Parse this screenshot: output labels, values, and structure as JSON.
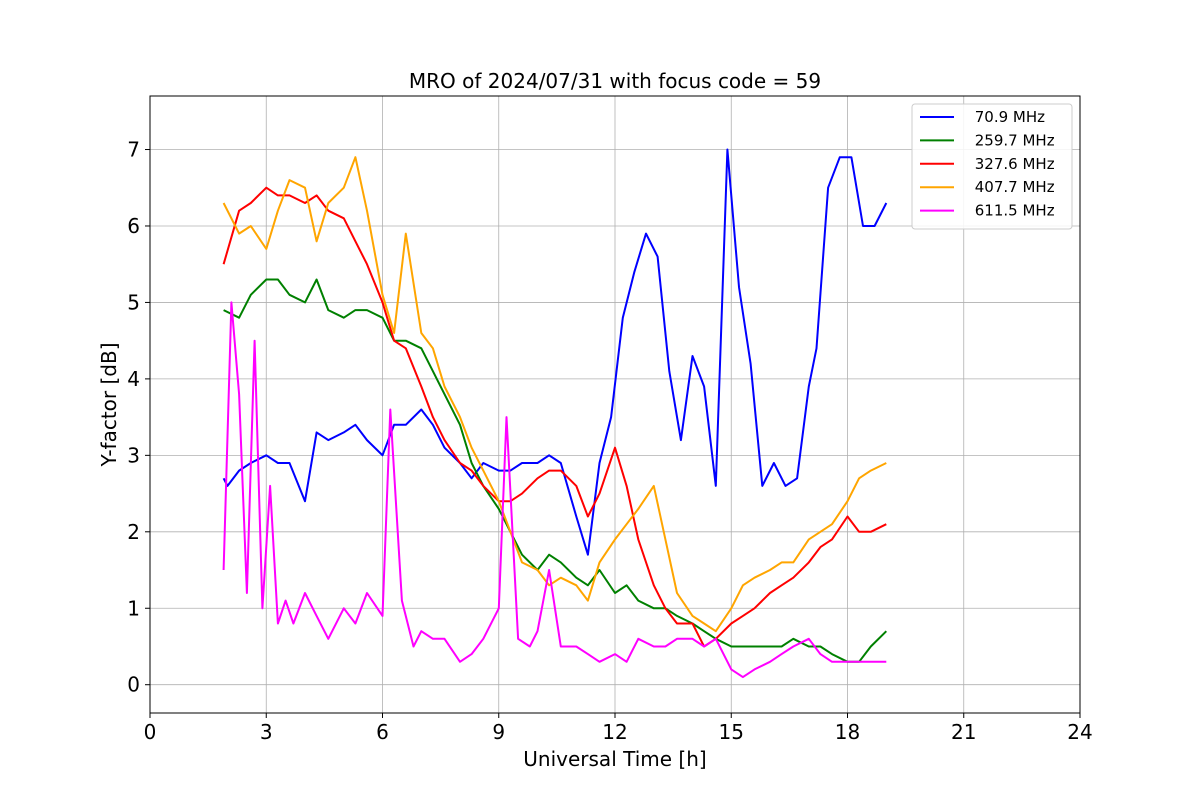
{
  "chart_data": {
    "type": "line",
    "title": "MRO of 2024/07/31 with focus code = 59",
    "xlabel": "Universal Time [h]",
    "ylabel": "Y-factor [dB]",
    "xlim": [
      0,
      24
    ],
    "ylim": [
      -0.37,
      7.7
    ],
    "xticks": [
      0,
      3,
      6,
      9,
      12,
      15,
      18,
      21,
      24
    ],
    "yticks": [
      0,
      1,
      2,
      3,
      4,
      5,
      6,
      7
    ],
    "grid": true,
    "legend_position": "top-right",
    "series": [
      {
        "name": " 70.9 MHz",
        "color": "#0000ff",
        "x": [
          1.9,
          2.0,
          2.3,
          2.6,
          3.0,
          3.3,
          3.6,
          4.0,
          4.3,
          4.6,
          5.0,
          5.3,
          5.6,
          6.0,
          6.3,
          6.6,
          7.0,
          7.3,
          7.6,
          8.0,
          8.3,
          8.6,
          9.0,
          9.3,
          9.6,
          10.0,
          10.3,
          10.6,
          11.0,
          11.3,
          11.6,
          11.9,
          12.2,
          12.5,
          12.8,
          13.1,
          13.4,
          13.7,
          14.0,
          14.3,
          14.6,
          14.9,
          15.2,
          15.5,
          15.8,
          16.1,
          16.4,
          16.7,
          17.0,
          17.2,
          17.5,
          17.8,
          18.1,
          18.4,
          18.7,
          19.0
        ],
        "values": [
          2.7,
          2.6,
          2.8,
          2.9,
          3.0,
          2.9,
          2.9,
          2.4,
          3.3,
          3.2,
          3.3,
          3.4,
          3.2,
          3.0,
          3.4,
          3.4,
          3.6,
          3.4,
          3.1,
          2.9,
          2.7,
          2.9,
          2.8,
          2.8,
          2.9,
          2.9,
          3.0,
          2.9,
          2.2,
          1.7,
          2.9,
          3.5,
          4.8,
          5.4,
          5.9,
          5.6,
          4.1,
          3.2,
          4.3,
          3.9,
          2.6,
          7.0,
          5.2,
          4.2,
          2.6,
          2.9,
          2.6,
          2.7,
          3.9,
          4.4,
          6.5,
          6.9,
          6.9,
          6.0,
          6.0,
          6.3
        ]
      },
      {
        "name": " 259.7 MHz",
        "color": "#008000",
        "x": [
          1.9,
          2.3,
          2.6,
          3.0,
          3.3,
          3.6,
          4.0,
          4.3,
          4.6,
          5.0,
          5.3,
          5.6,
          6.0,
          6.3,
          6.6,
          7.0,
          7.3,
          7.6,
          8.0,
          8.3,
          8.6,
          9.0,
          9.3,
          9.6,
          10.0,
          10.3,
          10.6,
          11.0,
          11.3,
          11.6,
          12.0,
          12.3,
          12.6,
          13.0,
          13.3,
          13.6,
          14.0,
          14.3,
          14.6,
          15.0,
          15.3,
          15.6,
          16.0,
          16.3,
          16.6,
          17.0,
          17.3,
          17.6,
          18.0,
          18.3,
          18.6,
          19.0
        ],
        "values": [
          4.9,
          4.8,
          5.1,
          5.3,
          5.3,
          5.1,
          5.0,
          5.3,
          4.9,
          4.8,
          4.9,
          4.9,
          4.8,
          4.5,
          4.5,
          4.4,
          4.1,
          3.8,
          3.4,
          2.9,
          2.6,
          2.3,
          2.0,
          1.7,
          1.5,
          1.7,
          1.6,
          1.4,
          1.3,
          1.5,
          1.2,
          1.3,
          1.1,
          1.0,
          1.0,
          0.9,
          0.8,
          0.7,
          0.6,
          0.5,
          0.5,
          0.5,
          0.5,
          0.5,
          0.6,
          0.5,
          0.5,
          0.4,
          0.3,
          0.3,
          0.5,
          0.7
        ]
      },
      {
        "name": " 327.6 MHz",
        "color": "#ff0000",
        "x": [
          1.9,
          2.3,
          2.6,
          3.0,
          3.3,
          3.6,
          4.0,
          4.3,
          4.6,
          5.0,
          5.3,
          5.6,
          6.0,
          6.3,
          6.6,
          7.0,
          7.3,
          7.6,
          8.0,
          8.3,
          8.6,
          9.0,
          9.3,
          9.6,
          10.0,
          10.3,
          10.6,
          11.0,
          11.3,
          11.6,
          12.0,
          12.3,
          12.6,
          13.0,
          13.3,
          13.6,
          14.0,
          14.3,
          14.6,
          15.0,
          15.3,
          15.6,
          16.0,
          16.3,
          16.6,
          17.0,
          17.3,
          17.6,
          18.0,
          18.3,
          18.6,
          19.0
        ],
        "values": [
          5.5,
          6.2,
          6.3,
          6.5,
          6.4,
          6.4,
          6.3,
          6.4,
          6.2,
          6.1,
          5.8,
          5.5,
          5.0,
          4.5,
          4.4,
          3.9,
          3.5,
          3.2,
          2.9,
          2.8,
          2.6,
          2.4,
          2.4,
          2.5,
          2.7,
          2.8,
          2.8,
          2.6,
          2.2,
          2.5,
          3.1,
          2.6,
          1.9,
          1.3,
          1.0,
          0.8,
          0.8,
          0.5,
          0.6,
          0.8,
          0.9,
          1.0,
          1.2,
          1.3,
          1.4,
          1.6,
          1.8,
          1.9,
          2.2,
          2.0,
          2.0,
          2.1
        ]
      },
      {
        "name": " 407.7 MHz",
        "color": "#ffa500",
        "x": [
          1.9,
          2.3,
          2.6,
          3.0,
          3.3,
          3.6,
          4.0,
          4.3,
          4.6,
          5.0,
          5.3,
          5.6,
          6.0,
          6.3,
          6.6,
          7.0,
          7.3,
          7.6,
          8.0,
          8.3,
          8.6,
          9.0,
          9.3,
          9.6,
          10.0,
          10.3,
          10.6,
          11.0,
          11.3,
          11.6,
          12.0,
          12.3,
          12.6,
          13.0,
          13.3,
          13.6,
          14.0,
          14.3,
          14.6,
          15.0,
          15.3,
          15.6,
          16.0,
          16.3,
          16.6,
          17.0,
          17.3,
          17.6,
          18.0,
          18.3,
          18.6,
          19.0
        ],
        "values": [
          6.3,
          5.9,
          6.0,
          5.7,
          6.2,
          6.6,
          6.5,
          5.8,
          6.3,
          6.5,
          6.9,
          6.2,
          5.1,
          4.6,
          5.9,
          4.6,
          4.4,
          3.9,
          3.5,
          3.1,
          2.8,
          2.4,
          2.0,
          1.6,
          1.5,
          1.3,
          1.4,
          1.3,
          1.1,
          1.6,
          1.9,
          2.1,
          2.3,
          2.6,
          1.9,
          1.2,
          0.9,
          0.8,
          0.7,
          1.0,
          1.3,
          1.4,
          1.5,
          1.6,
          1.6,
          1.9,
          2.0,
          2.1,
          2.4,
          2.7,
          2.8,
          2.9
        ]
      },
      {
        "name": " 611.5 MHz",
        "color": "#ff00ff",
        "x": [
          1.9,
          2.1,
          2.3,
          2.5,
          2.7,
          2.9,
          3.1,
          3.3,
          3.5,
          3.7,
          4.0,
          4.3,
          4.6,
          5.0,
          5.3,
          5.6,
          6.0,
          6.2,
          6.5,
          6.8,
          7.0,
          7.3,
          7.6,
          8.0,
          8.3,
          8.6,
          9.0,
          9.2,
          9.5,
          9.8,
          10.0,
          10.3,
          10.6,
          11.0,
          11.3,
          11.6,
          12.0,
          12.3,
          12.6,
          13.0,
          13.3,
          13.6,
          14.0,
          14.3,
          14.6,
          15.0,
          15.3,
          15.6,
          16.0,
          16.3,
          16.6,
          17.0,
          17.3,
          17.6,
          18.0,
          18.3,
          18.6,
          19.0
        ],
        "values": [
          1.5,
          5.0,
          3.8,
          1.2,
          4.5,
          1.0,
          2.6,
          0.8,
          1.1,
          0.8,
          1.2,
          0.9,
          0.6,
          1.0,
          0.8,
          1.2,
          0.9,
          3.6,
          1.1,
          0.5,
          0.7,
          0.6,
          0.6,
          0.3,
          0.4,
          0.6,
          1.0,
          3.5,
          0.6,
          0.5,
          0.7,
          1.5,
          0.5,
          0.5,
          0.4,
          0.3,
          0.4,
          0.3,
          0.6,
          0.5,
          0.5,
          0.6,
          0.6,
          0.5,
          0.6,
          0.2,
          0.1,
          0.2,
          0.3,
          0.4,
          0.5,
          0.6,
          0.4,
          0.3,
          0.3,
          0.3,
          0.3,
          0.3
        ]
      }
    ]
  }
}
